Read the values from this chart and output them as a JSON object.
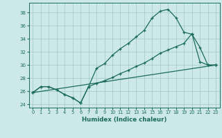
{
  "xlabel": "Humidex (Indice chaleur)",
  "background_color": "#cce8e8",
  "grid_color": "#aacccc",
  "line_color": "#1a6b5a",
  "xlim": [
    -0.5,
    23.5
  ],
  "ylim": [
    23.5,
    39.5
  ],
  "yticks": [
    24,
    26,
    28,
    30,
    32,
    34,
    36,
    38
  ],
  "xticks": [
    0,
    1,
    2,
    3,
    4,
    5,
    6,
    7,
    8,
    9,
    10,
    11,
    12,
    13,
    14,
    15,
    16,
    17,
    18,
    19,
    20,
    21,
    22,
    23
  ],
  "line1_x": [
    0,
    1,
    2,
    3,
    4,
    5,
    6,
    7,
    8,
    9,
    10,
    11,
    12,
    13,
    14,
    15,
    16,
    17,
    18,
    19,
    20,
    21,
    22,
    23
  ],
  "line1_y": [
    25.8,
    26.7,
    26.7,
    26.2,
    25.5,
    25.0,
    24.2,
    26.7,
    29.5,
    30.2,
    31.5,
    32.5,
    33.3,
    34.3,
    35.3,
    37.2,
    38.2,
    38.5,
    37.2,
    35.0,
    34.7,
    32.7,
    30.0,
    30.0
  ],
  "line2_x": [
    0,
    1,
    2,
    3,
    4,
    5,
    6,
    7,
    8,
    9,
    10,
    11,
    12,
    13,
    14,
    15,
    16,
    17,
    18,
    19,
    20,
    21,
    22,
    23
  ],
  "line2_y": [
    25.8,
    26.7,
    26.7,
    26.2,
    25.5,
    25.0,
    24.2,
    26.7,
    27.2,
    27.6,
    28.1,
    28.7,
    29.2,
    29.8,
    30.3,
    31.0,
    31.8,
    32.3,
    32.8,
    33.3,
    34.8,
    30.5,
    30.0,
    30.0
  ],
  "line3_x": [
    0,
    23
  ],
  "line3_y": [
    25.8,
    30.0
  ]
}
